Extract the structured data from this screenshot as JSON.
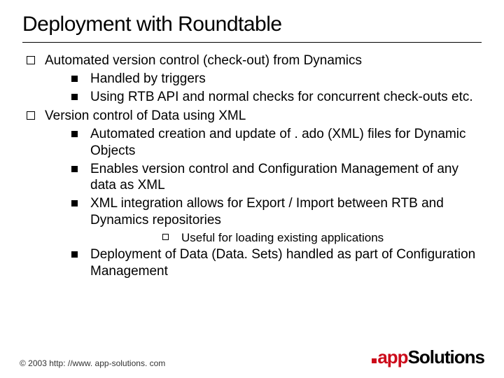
{
  "title": "Deployment with Roundtable",
  "bullets": {
    "a": "Automated version control (check-out) from Dynamics",
    "a1": "Handled by triggers",
    "a2": "Using RTB API and normal checks for concurrent check-outs etc.",
    "b": "Version control of Data using XML",
    "b1": "Automated creation and update of . ado (XML) files for Dynamic Objects",
    "b2": "Enables version control and Configuration Management of any data as XML",
    "b3": "XML integration allows for Export / Import between RTB and Dynamics repositories",
    "b3a": "Useful for loading existing applications",
    "b4": "Deployment of Data (Data. Sets) handled as part of Configuration Management"
  },
  "footer": {
    "copyright": "© 2003 http: //www. app-solutions. com",
    "logo_app": "app",
    "logo_sol": "Solutions"
  },
  "colors": {
    "brand_red": "#cc0a1a"
  }
}
